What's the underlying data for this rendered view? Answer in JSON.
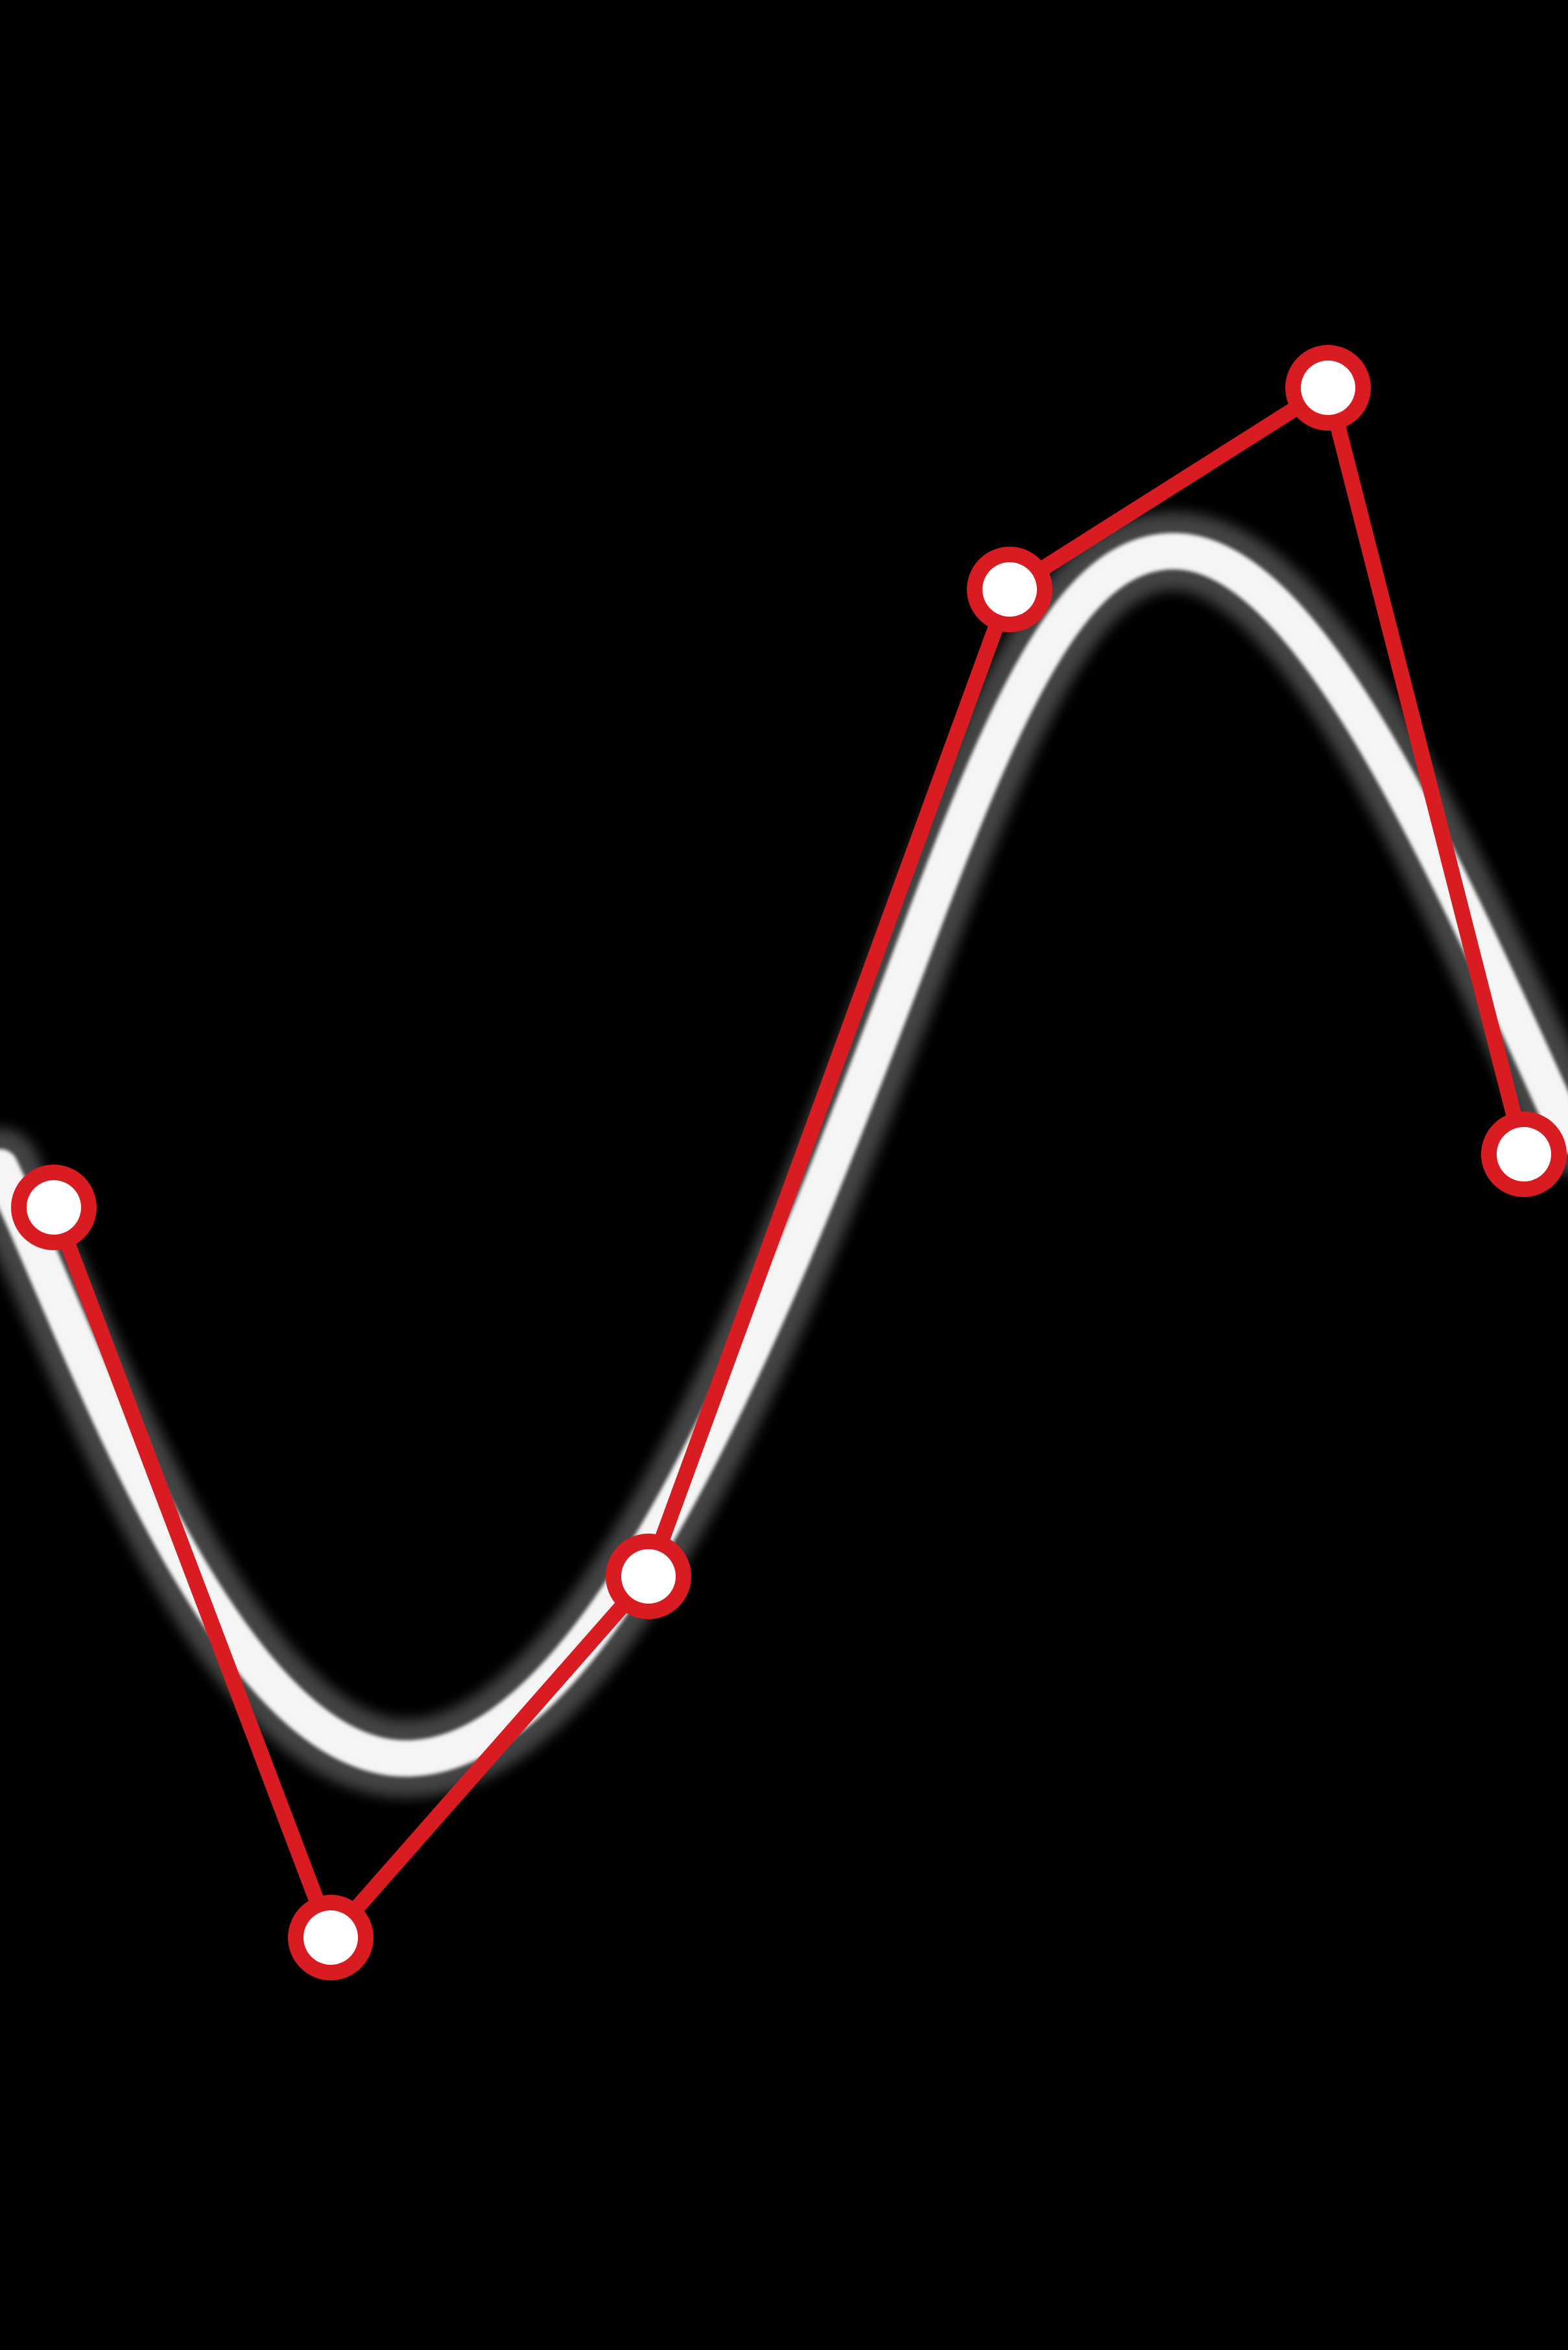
{
  "scene": {
    "background_color": "#000000",
    "smooth_curve": {
      "color": "#ffffff",
      "style": "blurred-glow",
      "shape": "smooth spline passing near the control points"
    },
    "control_polygon": {
      "line_color": "#d91c22",
      "point_fill": "#ffffff",
      "point_stroke": "#d91c22",
      "point_count": 6
    }
  }
}
